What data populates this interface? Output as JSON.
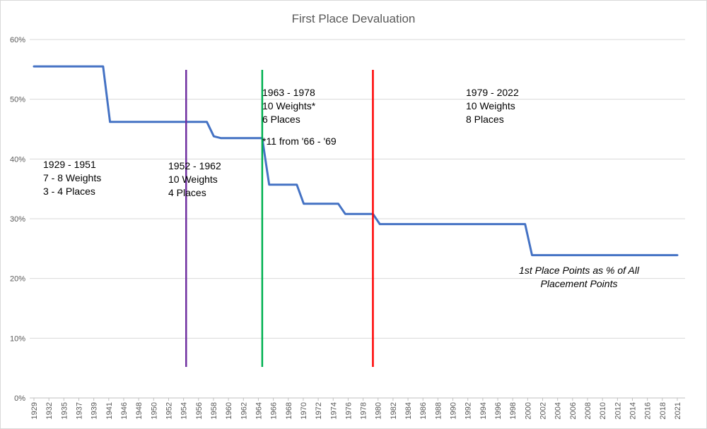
{
  "chart_data": {
    "type": "line",
    "title": "First Place Devaluation",
    "xlabel": "",
    "ylabel": "",
    "ylim": [
      0,
      60
    ],
    "ytick_values": [
      0,
      10,
      20,
      30,
      40,
      50,
      60
    ],
    "ytick_labels": [
      "0%",
      "10%",
      "20%",
      "30%",
      "40%",
      "50%",
      "60%"
    ],
    "xlim": [
      1929,
      2022
    ],
    "xtick_labels": [
      "1929",
      "1932",
      "1935",
      "1937",
      "1939",
      "1941",
      "1946",
      "1948",
      "1950",
      "1952",
      "1954",
      "1956",
      "1958",
      "1960",
      "1962",
      "1964",
      "1966",
      "1968",
      "1970",
      "1972",
      "1974",
      "1976",
      "1978",
      "1980",
      "1982",
      "1984",
      "1986",
      "1988",
      "1990",
      "1992",
      "1994",
      "1996",
      "1998",
      "2000",
      "2002",
      "2004",
      "2006",
      "2008",
      "2010",
      "2012",
      "2014",
      "2016",
      "2018",
      "2021"
    ],
    "grid": true,
    "series": [
      {
        "name": "1st Place Points as % of All Placement Points",
        "color": "#4472C4",
        "x": [
          1929,
          1937,
          1939,
          1940,
          1941,
          1952,
          1954,
          1955,
          1956,
          1962,
          1963,
          1964,
          1967,
          1968,
          1973,
          1974,
          1978,
          1979,
          2000,
          2001,
          2022
        ],
        "values": [
          55.5,
          55.5,
          55.5,
          46.2,
          46.2,
          46.2,
          46.2,
          43.8,
          43.5,
          43.5,
          35.7,
          35.7,
          35.7,
          32.5,
          32.5,
          30.8,
          30.8,
          29.1,
          29.1,
          23.9,
          23.9
        ]
      }
    ],
    "vertical_markers": [
      {
        "name": "1951-marker",
        "x": 1951,
        "color": "#7030A0"
      },
      {
        "name": "1962-marker",
        "x": 1962,
        "color": "#00B050"
      },
      {
        "name": "1978-marker",
        "x": 1978,
        "color": "#FF0000"
      }
    ],
    "annotations": {
      "era1": [
        "1929 - 1951",
        "7 - 8 Weights",
        "3 - 4 Places"
      ],
      "era2": [
        "1952 - 1962",
        "10 Weights",
        "4 Places"
      ],
      "era3": [
        "1963 - 1978",
        "10 Weights*",
        "6 Places"
      ],
      "era3_note": "*11 from '66 - '69",
      "era4": [
        "1979 - 2022",
        "10 Weights",
        "8 Places"
      ],
      "series_label": [
        "1st Place Points as % of All",
        "Placement Points"
      ]
    }
  }
}
